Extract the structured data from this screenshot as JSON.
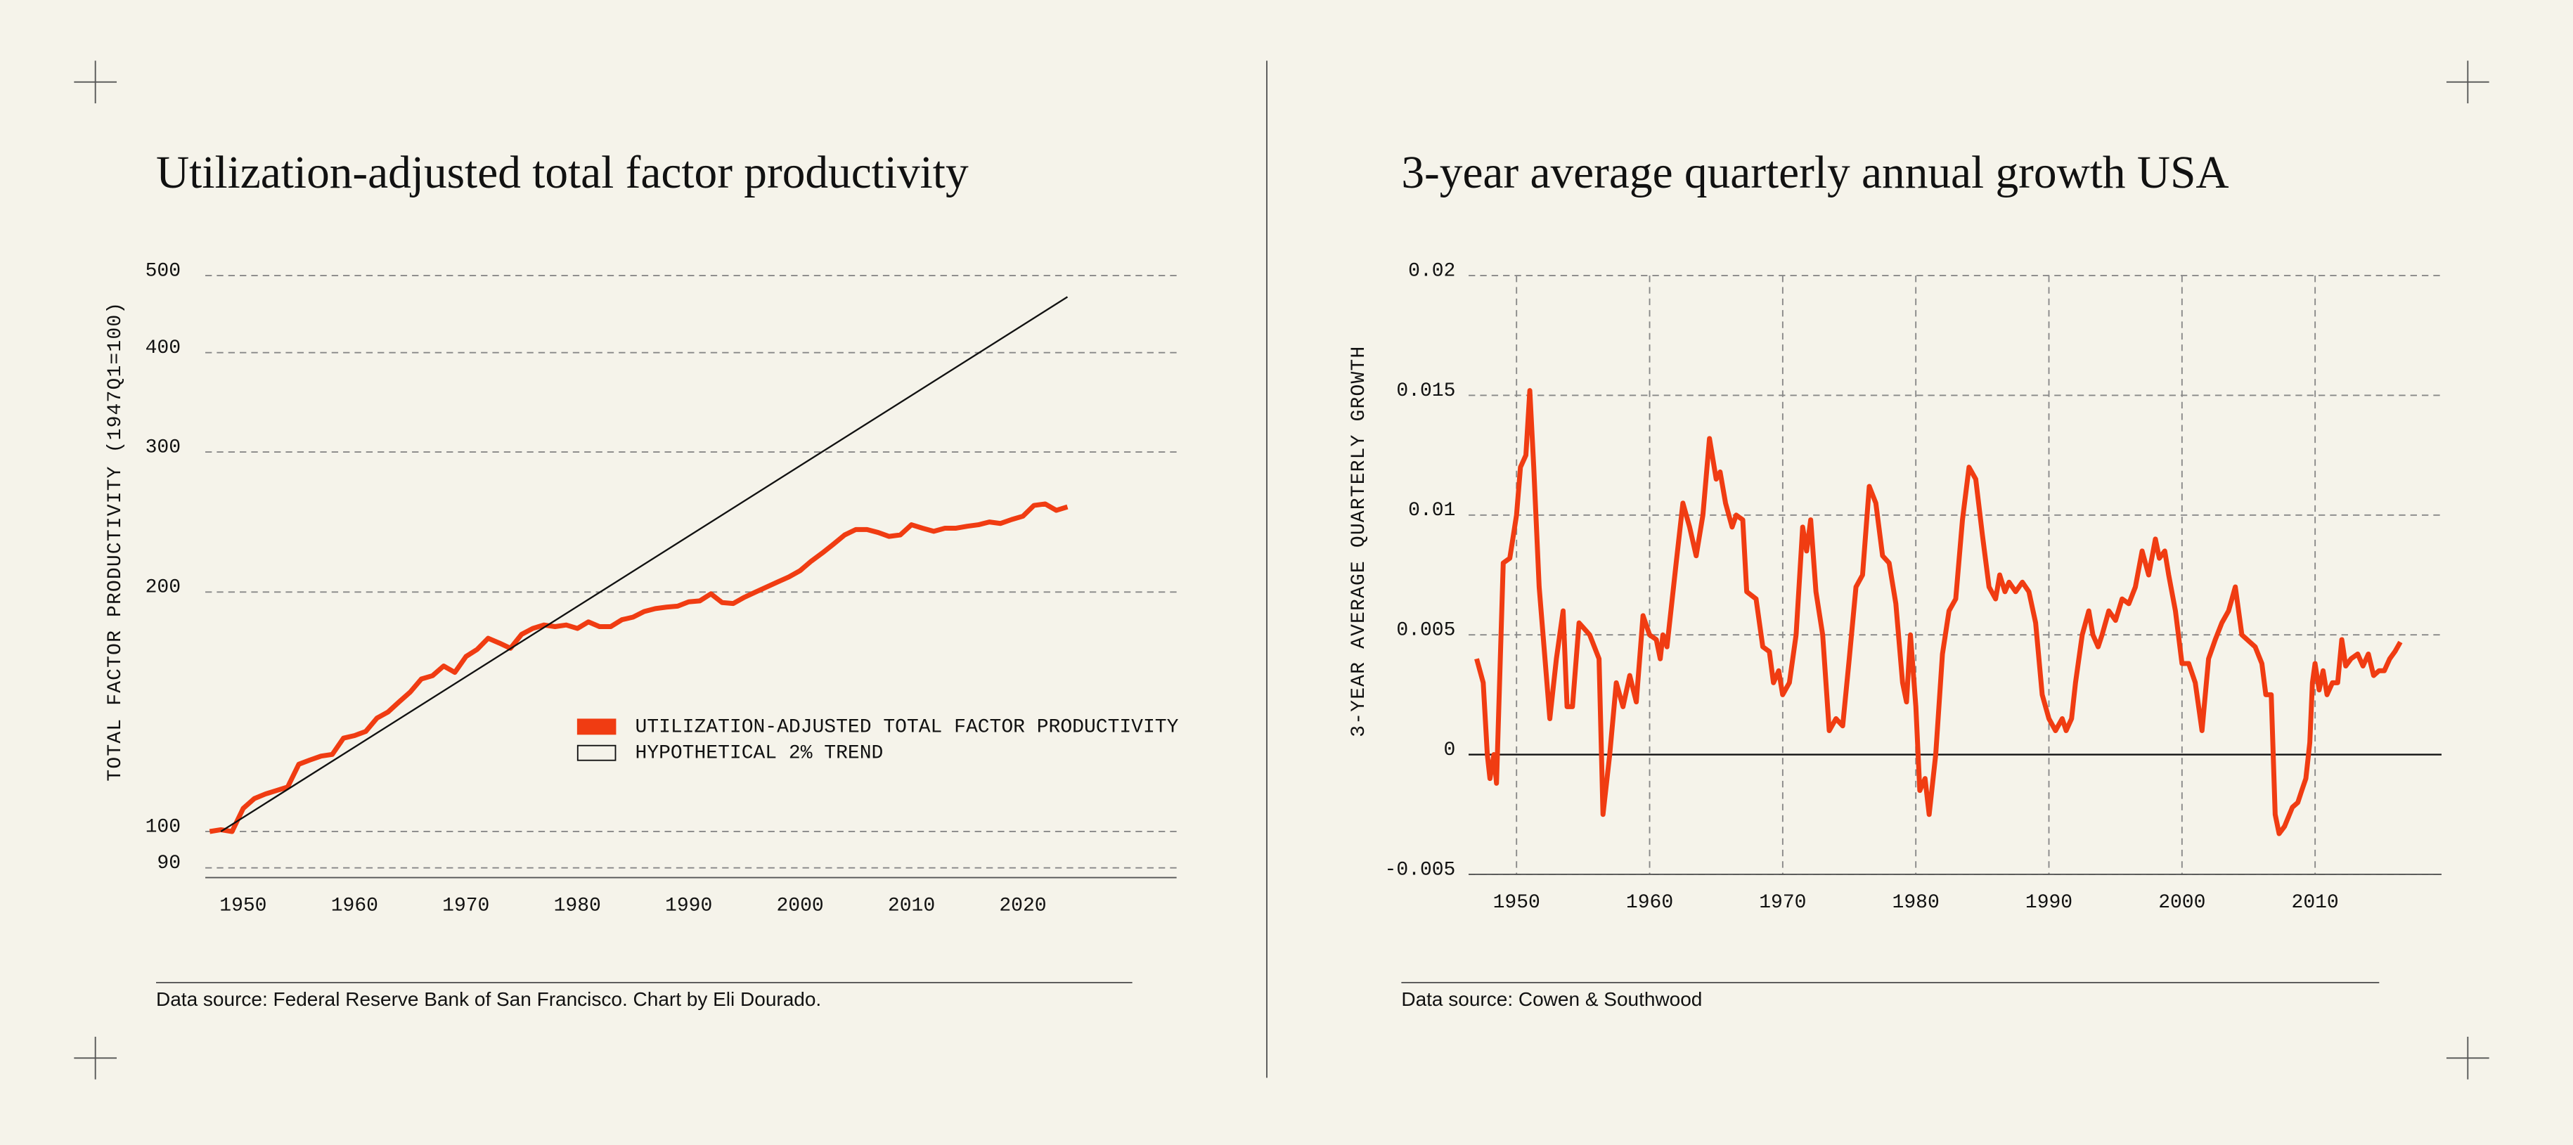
{
  "chart_data": [
    {
      "type": "line",
      "title": "Utilization-adjusted total factor productivity",
      "ylabel": "TOTAL FACTOR PRODUCTIVITY (1947Q1=100)",
      "source": "Data source: Federal Reserve Bank of San Francisco. Chart by Eli Dourado.",
      "log_scale": true,
      "grid": true,
      "xgrid": false,
      "zero_line": false,
      "legend": "center right",
      "xlim": [
        1946.6,
        2033.8
      ],
      "xticks": [
        1950,
        1960,
        1970,
        1980,
        1990,
        2000,
        2010,
        2020
      ],
      "ylim": [
        87.5,
        500
      ],
      "yticks": [
        90,
        100,
        200,
        300,
        400,
        500
      ],
      "series": [
        {
          "name": "UTILIZATION-ADJUSTED TOTAL FACTOR PRODUCTIVITY",
          "color": "#f03c12",
          "linewidth": 3,
          "x": [
            1947,
            1948,
            1949,
            1950,
            1951,
            1952,
            1953,
            1954,
            1955,
            1956,
            1957,
            1958,
            1959,
            1960,
            1961,
            1962,
            1963,
            1964,
            1965,
            1966,
            1967,
            1968,
            1969,
            1970,
            1971,
            1972,
            1973,
            1974,
            1975,
            1976,
            1977,
            1978,
            1979,
            1980,
            1981,
            1982,
            1983,
            1984,
            1985,
            1986,
            1987,
            1988,
            1989,
            1990,
            1991,
            1992,
            1993,
            1994,
            1995,
            1996,
            1997,
            1998,
            1999,
            2000,
            2001,
            2002,
            2003,
            2004,
            2005,
            2006,
            2007,
            2008,
            2009,
            2010,
            2011,
            2012,
            2013,
            2014,
            2015,
            2016,
            2017,
            2018,
            2019,
            2020,
            2021,
            2022,
            2023,
            2024
          ],
          "values": [
            100,
            100.5,
            100,
            106.9,
            110,
            111.5,
            112.6,
            113.7,
            121.5,
            123,
            124.4,
            125,
            131,
            132,
            133.6,
            138.8,
            141.3,
            145.5,
            149.7,
            155.5,
            157,
            161.5,
            158.5,
            166,
            169.4,
            175,
            172.6,
            170,
            177,
            180,
            181.8,
            181,
            181.8,
            180,
            183.5,
            181,
            181,
            184.6,
            186,
            189,
            190.7,
            191.5,
            192,
            194.4,
            195,
            199,
            194,
            193.5,
            197,
            200,
            203,
            206,
            209,
            212.8,
            218.7,
            224,
            229.8,
            236,
            239.7,
            239.7,
            237.7,
            235,
            236,
            243,
            240.6,
            238.5,
            240.6,
            240.6,
            242,
            243,
            245,
            244,
            246.7,
            249.1,
            257,
            258.2,
            253.4,
            256
          ]
        },
        {
          "name": "HYPOTHETICAL 2% TREND",
          "color": "#111111",
          "linewidth": 1,
          "x": [
            1948,
            2024
          ],
          "values": [
            100,
            470
          ]
        }
      ]
    },
    {
      "type": "line",
      "title": "3-year average quarterly annual growth USA",
      "ylabel": "3-YEAR AVERAGE QUARTERLY GROWTH",
      "source": "Data source: Cowen & Southwood",
      "log_scale": false,
      "grid": true,
      "xgrid": true,
      "zero_line": true,
      "xlim": [
        1946.4,
        2019.5
      ],
      "xticks": [
        1950,
        1960,
        1970,
        1980,
        1990,
        2000,
        2010
      ],
      "ylim": [
        -0.005,
        0.02
      ],
      "yticks": [
        -0.005,
        0,
        0.005,
        0.01,
        0.015,
        0.02
      ],
      "color": "#f03c12",
      "linewidth": 3,
      "x": [
        1947.0,
        1947.5,
        1947.8,
        1948.0,
        1948.3,
        1948.5,
        1949.0,
        1949.5,
        1950.0,
        1950.3,
        1950.7,
        1951.0,
        1951.3,
        1951.7,
        1952.5,
        1953.0,
        1953.5,
        1953.8,
        1954.2,
        1954.7,
        1955.5,
        1956.2,
        1956.5,
        1957.0,
        1957.5,
        1958.0,
        1958.5,
        1959.0,
        1959.5,
        1960.0,
        1960.5,
        1960.8,
        1961.0,
        1961.3,
        1962.0,
        1962.5,
        1963.0,
        1963.5,
        1964.0,
        1964.5,
        1965.0,
        1965.3,
        1965.7,
        1966.2,
        1966.5,
        1967.0,
        1967.3,
        1968.0,
        1968.5,
        1969.0,
        1969.3,
        1969.7,
        1970.0,
        1970.5,
        1971.0,
        1971.5,
        1971.8,
        1972.1,
        1972.5,
        1973.0,
        1973.5,
        1974.0,
        1974.5,
        1975.0,
        1975.5,
        1976.0,
        1976.5,
        1977.0,
        1977.5,
        1978.0,
        1978.5,
        1979.0,
        1979.3,
        1979.6,
        1980.0,
        1980.3,
        1980.7,
        1981.0,
        1981.5,
        1982.0,
        1982.5,
        1983.0,
        1983.5,
        1984.0,
        1984.5,
        1985.0,
        1985.5,
        1986.0,
        1986.3,
        1986.7,
        1987.0,
        1987.5,
        1988.0,
        1988.5,
        1989.0,
        1989.5,
        1990.0,
        1990.5,
        1991.0,
        1991.3,
        1991.7,
        1992.0,
        1992.5,
        1993.0,
        1993.3,
        1993.7,
        1994.0,
        1994.5,
        1995.0,
        1995.5,
        1996.0,
        1996.5,
        1997.0,
        1997.5,
        1998.0,
        1998.3,
        1998.7,
        1999.0,
        1999.5,
        2000.0,
        2000.5,
        2001.0,
        2001.5,
        2002.0,
        2002.5,
        2003.0,
        2003.5,
        2004.0,
        2004.5,
        2005.5,
        2006.0,
        2006.3,
        2006.7,
        2007.0,
        2007.3,
        2007.7,
        2008.3,
        2008.7,
        2009.0,
        2009.3,
        2009.6,
        2009.8,
        2010.0,
        2010.3,
        2010.6,
        2010.9,
        2011.3,
        2011.7,
        2012.0,
        2012.3,
        2012.7,
        2013.2,
        2013.6,
        2014.0,
        2014.4,
        2014.8,
        2015.2,
        2015.6,
        2016.0,
        2016.4
      ],
      "values": [
        0.004,
        0.003,
        0.0,
        -0.001,
        0.0,
        -0.0012,
        0.008,
        0.0082,
        0.01,
        0.012,
        0.0125,
        0.0152,
        0.012,
        0.007,
        0.0015,
        0.004,
        0.006,
        0.002,
        0.002,
        0.0055,
        0.005,
        0.004,
        -0.0025,
        0.0,
        0.003,
        0.002,
        0.0033,
        0.0022,
        0.0058,
        0.005,
        0.0048,
        0.004,
        0.005,
        0.0045,
        0.008,
        0.0105,
        0.0095,
        0.0083,
        0.01,
        0.0132,
        0.0115,
        0.0118,
        0.0105,
        0.0095,
        0.01,
        0.0098,
        0.0068,
        0.0065,
        0.0045,
        0.0043,
        0.003,
        0.0035,
        0.0025,
        0.003,
        0.005,
        0.0095,
        0.0085,
        0.0098,
        0.0068,
        0.005,
        0.001,
        0.0015,
        0.0012,
        0.004,
        0.007,
        0.0075,
        0.0112,
        0.0105,
        0.0083,
        0.008,
        0.0063,
        0.003,
        0.0022,
        0.005,
        0.002,
        -0.0015,
        -0.001,
        -0.0025,
        0.0,
        0.0042,
        0.006,
        0.0065,
        0.0098,
        0.012,
        0.0115,
        0.0092,
        0.007,
        0.0065,
        0.0075,
        0.0068,
        0.0072,
        0.0068,
        0.0072,
        0.0068,
        0.0055,
        0.0025,
        0.0015,
        0.001,
        0.0015,
        0.001,
        0.0015,
        0.003,
        0.005,
        0.006,
        0.005,
        0.0045,
        0.005,
        0.006,
        0.0056,
        0.0065,
        0.0063,
        0.007,
        0.0085,
        0.0075,
        0.009,
        0.0082,
        0.0085,
        0.0075,
        0.006,
        0.0038,
        0.0038,
        0.003,
        0.001,
        0.004,
        0.0048,
        0.0055,
        0.006,
        0.007,
        0.005,
        0.0045,
        0.0038,
        0.0025,
        0.0025,
        -0.0025,
        -0.0033,
        -0.003,
        -0.0022,
        -0.002,
        -0.0015,
        -0.001,
        0.0005,
        0.003,
        0.0038,
        0.0027,
        0.0035,
        0.0025,
        0.003,
        0.003,
        0.0048,
        0.0037,
        0.004,
        0.0042,
        0.0037,
        0.0042,
        0.0033,
        0.0035,
        0.0035,
        0.004,
        0.0043,
        0.0047
      ]
    }
  ]
}
